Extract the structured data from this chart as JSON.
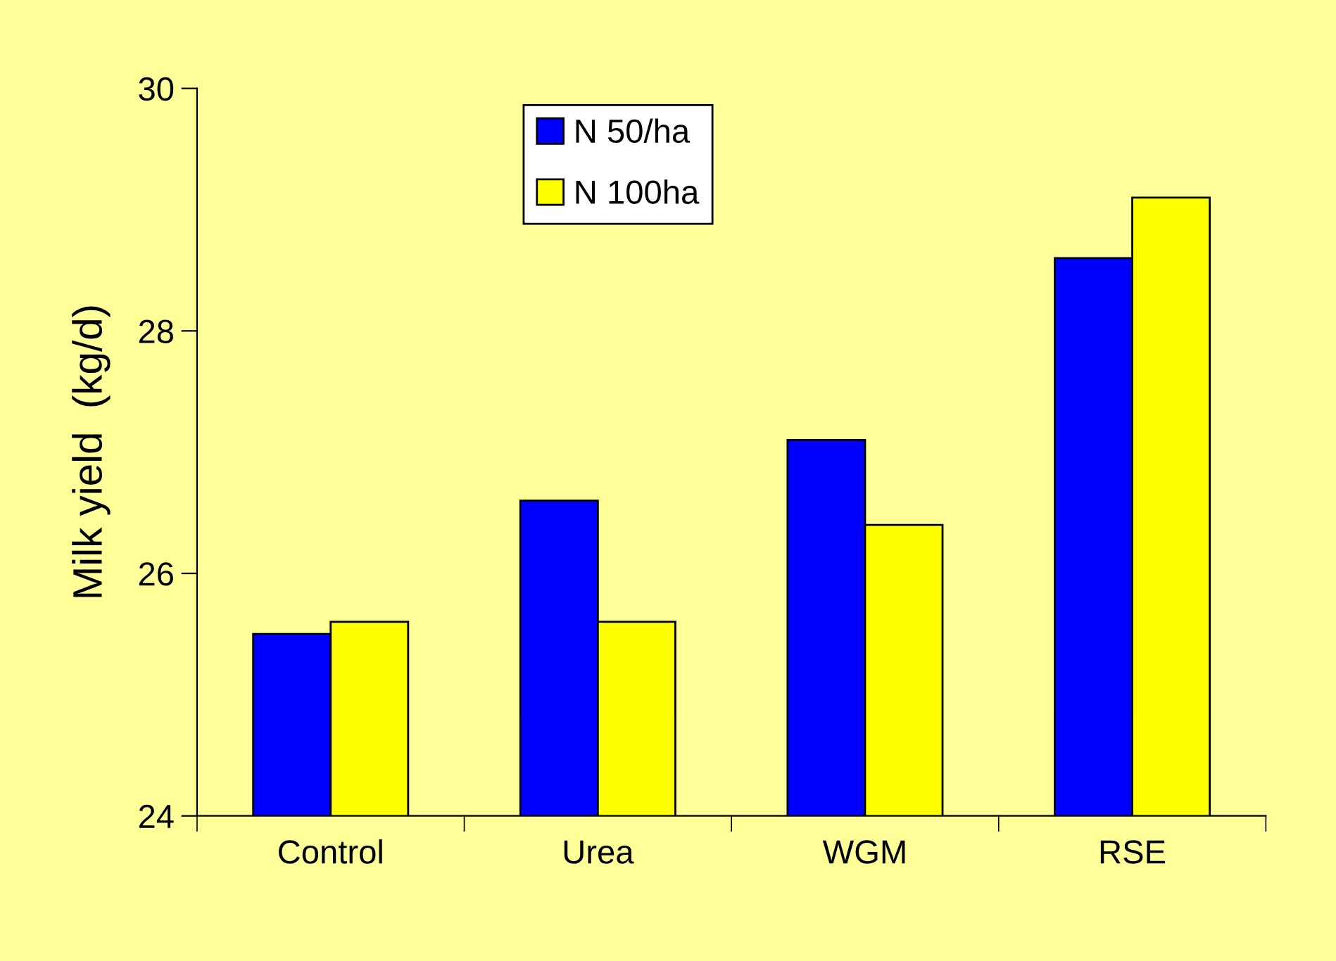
{
  "chart_data": {
    "type": "bar",
    "ylabel": "Milk yield  (kg/d)",
    "categories": [
      "Control",
      "Urea",
      "WGM",
      "RSE"
    ],
    "series": [
      {
        "name": "N 50/ha",
        "color": "#0000ff",
        "values": [
          25.5,
          26.6,
          27.1,
          28.6
        ]
      },
      {
        "name": "N 100ha",
        "color": "#ffff00",
        "values": [
          25.6,
          25.6,
          26.4,
          29.1
        ]
      }
    ],
    "ylim": [
      24,
      30
    ],
    "yticks": [
      24,
      26,
      28,
      30
    ],
    "grid": false,
    "legend": "top"
  }
}
